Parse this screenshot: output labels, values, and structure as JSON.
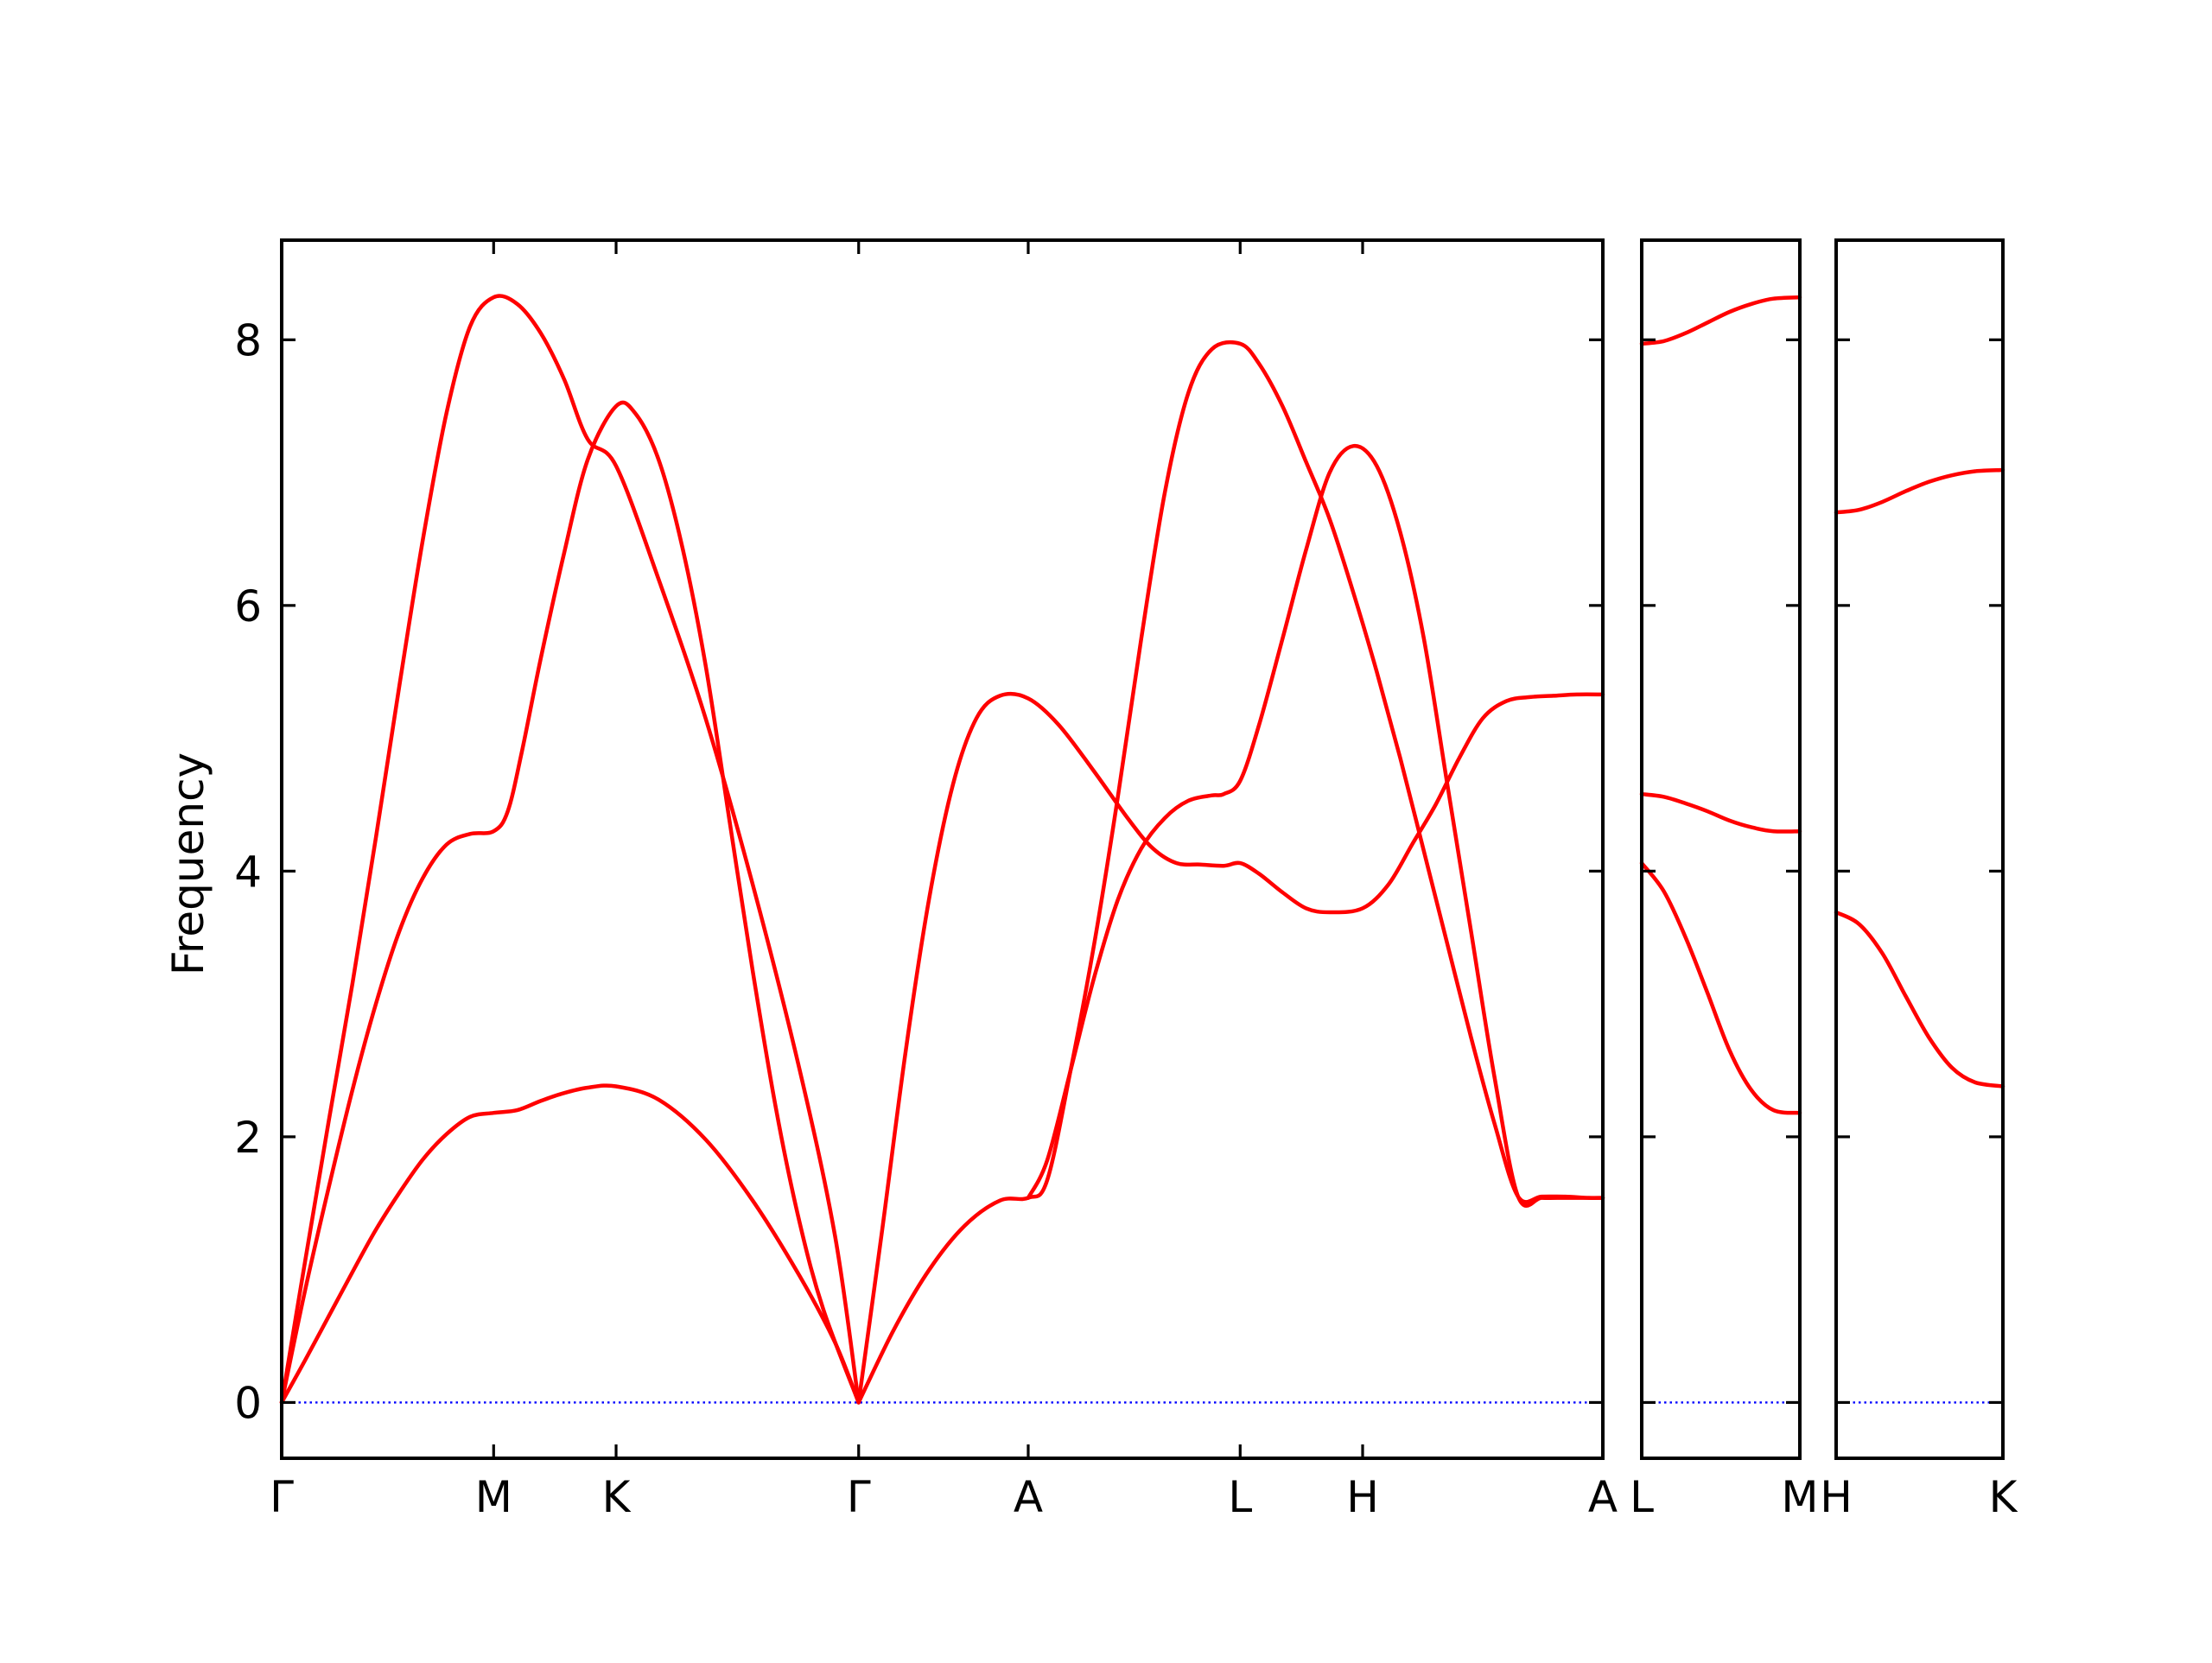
{
  "chart_data": {
    "type": "line",
    "ylabel": "Frequency",
    "ylim": [
      -0.42,
      8.75
    ],
    "yticks": [
      0,
      2,
      4,
      6,
      8
    ],
    "yticklabels": [
      "0",
      "2",
      "4",
      "6",
      "8"
    ],
    "grid": false,
    "colors": {
      "bands": "#ff0000",
      "zero_line": "#0000ff",
      "frame": "#000000"
    },
    "panels": [
      {
        "id": "main",
        "x_range": [
          0,
          5.61
        ],
        "ticks": [
          {
            "x": 0,
            "label": "Γ"
          },
          {
            "x": 0.9,
            "label": "M"
          },
          {
            "x": 1.42,
            "label": "K"
          },
          {
            "x": 2.45,
            "label": "Γ"
          },
          {
            "x": 3.17,
            "label": "A"
          },
          {
            "x": 4.07,
            "label": "L"
          },
          {
            "x": 4.59,
            "label": "H"
          },
          {
            "x": 5.61,
            "label": "A"
          }
        ],
        "series": [
          {
            "x": [
              0,
              0.1,
              0.2,
              0.3,
              0.4,
              0.5,
              0.6,
              0.7,
              0.8,
              0.9,
              1.0,
              1.1,
              1.2,
              1.3,
              1.42,
              1.6,
              1.8,
              2.0,
              2.2,
              2.35,
              2.45
            ],
            "values": [
              0,
              1.07,
              2.12,
              3.15,
              4.25,
              5.4,
              6.5,
              7.45,
              8.1,
              8.32,
              8.27,
              8.05,
              7.7,
              7.25,
              7.05,
              6.2,
              5.15,
              3.9,
              2.5,
              1.25,
              0
            ]
          },
          {
            "x": [
              0,
              0.1,
              0.2,
              0.3,
              0.4,
              0.5,
              0.6,
              0.7,
              0.8,
              0.9,
              0.96,
              1.02,
              1.1,
              1.2,
              1.3,
              1.42,
              1.5,
              1.6,
              1.7,
              1.8,
              1.9,
              2.0,
              2.1,
              2.2,
              2.3,
              2.45
            ],
            "values": [
              0,
              0.85,
              1.62,
              2.35,
              3.0,
              3.55,
              3.95,
              4.2,
              4.28,
              4.3,
              4.45,
              4.9,
              5.6,
              6.4,
              7.1,
              7.5,
              7.45,
              7.1,
              6.45,
              5.55,
              4.4,
              3.25,
              2.2,
              1.35,
              0.7,
              0
            ]
          },
          {
            "x": [
              0,
              0.1,
              0.2,
              0.3,
              0.4,
              0.5,
              0.6,
              0.7,
              0.8,
              0.9,
              1.0,
              1.1,
              1.2,
              1.3,
              1.42,
              1.6,
              1.8,
              2.0,
              2.2,
              2.35,
              2.45
            ],
            "values": [
              0,
              0.32,
              0.65,
              0.98,
              1.3,
              1.58,
              1.83,
              2.02,
              2.15,
              2.18,
              2.2,
              2.27,
              2.33,
              2.37,
              2.38,
              2.28,
              1.98,
              1.52,
              0.95,
              0.45,
              0
            ]
          },
          {
            "x": [
              2.45,
              2.55,
              2.65,
              2.75,
              2.85,
              2.95,
              3.05,
              3.17,
              3.3,
              3.45,
              3.6,
              3.7,
              3.8,
              3.9,
              4.0,
              4.07,
              4.15,
              4.25,
              4.35,
              4.45,
              4.59,
              4.7,
              4.8,
              4.9,
              5.0,
              5.1,
              5.2,
              5.3,
              5.4,
              5.5,
              5.61
            ],
            "values": [
              0,
              1.3,
              2.65,
              3.8,
              4.65,
              5.15,
              5.32,
              5.3,
              5.1,
              4.75,
              4.38,
              4.17,
              4.06,
              4.05,
              4.04,
              4.06,
              3.98,
              3.84,
              3.72,
              3.69,
              3.72,
              3.9,
              4.2,
              4.5,
              4.85,
              5.15,
              5.28,
              5.31,
              5.32,
              5.33,
              5.33
            ]
          },
          {
            "x": [
              2.45,
              2.6,
              2.75,
              2.9,
              3.05,
              3.17,
              3.25,
              3.35,
              3.45,
              3.55,
              3.65,
              3.75,
              3.85,
              3.95,
              4.07,
              4.15,
              4.25,
              4.35,
              4.45,
              4.55,
              4.65,
              4.75,
              4.85,
              4.95,
              5.05,
              5.15,
              5.25,
              5.35,
              5.45,
              5.55,
              5.61
            ],
            "values": [
              0,
              0.55,
              1.0,
              1.33,
              1.52,
              1.54,
              1.67,
              2.5,
              3.45,
              4.55,
              5.75,
              6.85,
              7.6,
              7.93,
              7.97,
              7.82,
              7.5,
              7.08,
              6.65,
              6.1,
              5.5,
              4.85,
              4.15,
              3.45,
              2.75,
              2.1,
              1.55,
              1.55,
              1.55,
              1.54,
              1.54
            ]
          },
          {
            "x": [
              3.17,
              3.25,
              3.35,
              3.45,
              3.55,
              3.65,
              3.75,
              3.85,
              3.95,
              4.0,
              4.07,
              4.15,
              4.25,
              4.35,
              4.45,
              4.55,
              4.65,
              4.75,
              4.85,
              4.95,
              5.05,
              5.15,
              5.25,
              5.35,
              5.45,
              5.55,
              5.61
            ],
            "values": [
              1.54,
              1.82,
              2.5,
              3.2,
              3.78,
              4.17,
              4.4,
              4.53,
              4.57,
              4.58,
              4.68,
              5.1,
              5.75,
              6.42,
              7.0,
              7.2,
              7.05,
              6.55,
              5.75,
              4.65,
              3.55,
              2.45,
              1.55,
              1.54,
              1.54,
              1.54,
              1.54
            ]
          }
        ]
      },
      {
        "id": "L-M",
        "x_range": [
          0,
          0.72
        ],
        "ticks": [
          {
            "x": 0,
            "label": "L"
          },
          {
            "x": 0.72,
            "label": "M"
          }
        ],
        "series": [
          {
            "x": [
              0,
              0.1,
              0.2,
              0.3,
              0.4,
              0.5,
              0.6,
              0.72
            ],
            "values": [
              7.97,
              7.99,
              8.05,
              8.13,
              8.21,
              8.27,
              8.31,
              8.32
            ]
          },
          {
            "x": [
              0,
              0.1,
              0.2,
              0.3,
              0.4,
              0.5,
              0.6,
              0.72
            ],
            "values": [
              4.58,
              4.56,
              4.51,
              4.45,
              4.38,
              4.33,
              4.3,
              4.3
            ]
          },
          {
            "x": [
              0,
              0.1,
              0.2,
              0.3,
              0.4,
              0.5,
              0.6,
              0.72
            ],
            "values": [
              4.06,
              3.85,
              3.5,
              3.08,
              2.65,
              2.35,
              2.2,
              2.18
            ]
          }
        ]
      },
      {
        "id": "H-K",
        "x_range": [
          0,
          0.72
        ],
        "ticks": [
          {
            "x": 0,
            "label": "H"
          },
          {
            "x": 0.72,
            "label": "K"
          }
        ],
        "series": [
          {
            "x": [
              0,
              0.1,
              0.2,
              0.3,
              0.4,
              0.5,
              0.6,
              0.72
            ],
            "values": [
              6.7,
              6.72,
              6.78,
              6.86,
              6.93,
              6.98,
              7.01,
              7.02
            ]
          },
          {
            "x": [
              0,
              0.1,
              0.2,
              0.3,
              0.4,
              0.5,
              0.6,
              0.72
            ],
            "values": [
              3.69,
              3.6,
              3.38,
              3.06,
              2.75,
              2.52,
              2.41,
              2.38
            ]
          }
        ]
      }
    ]
  }
}
